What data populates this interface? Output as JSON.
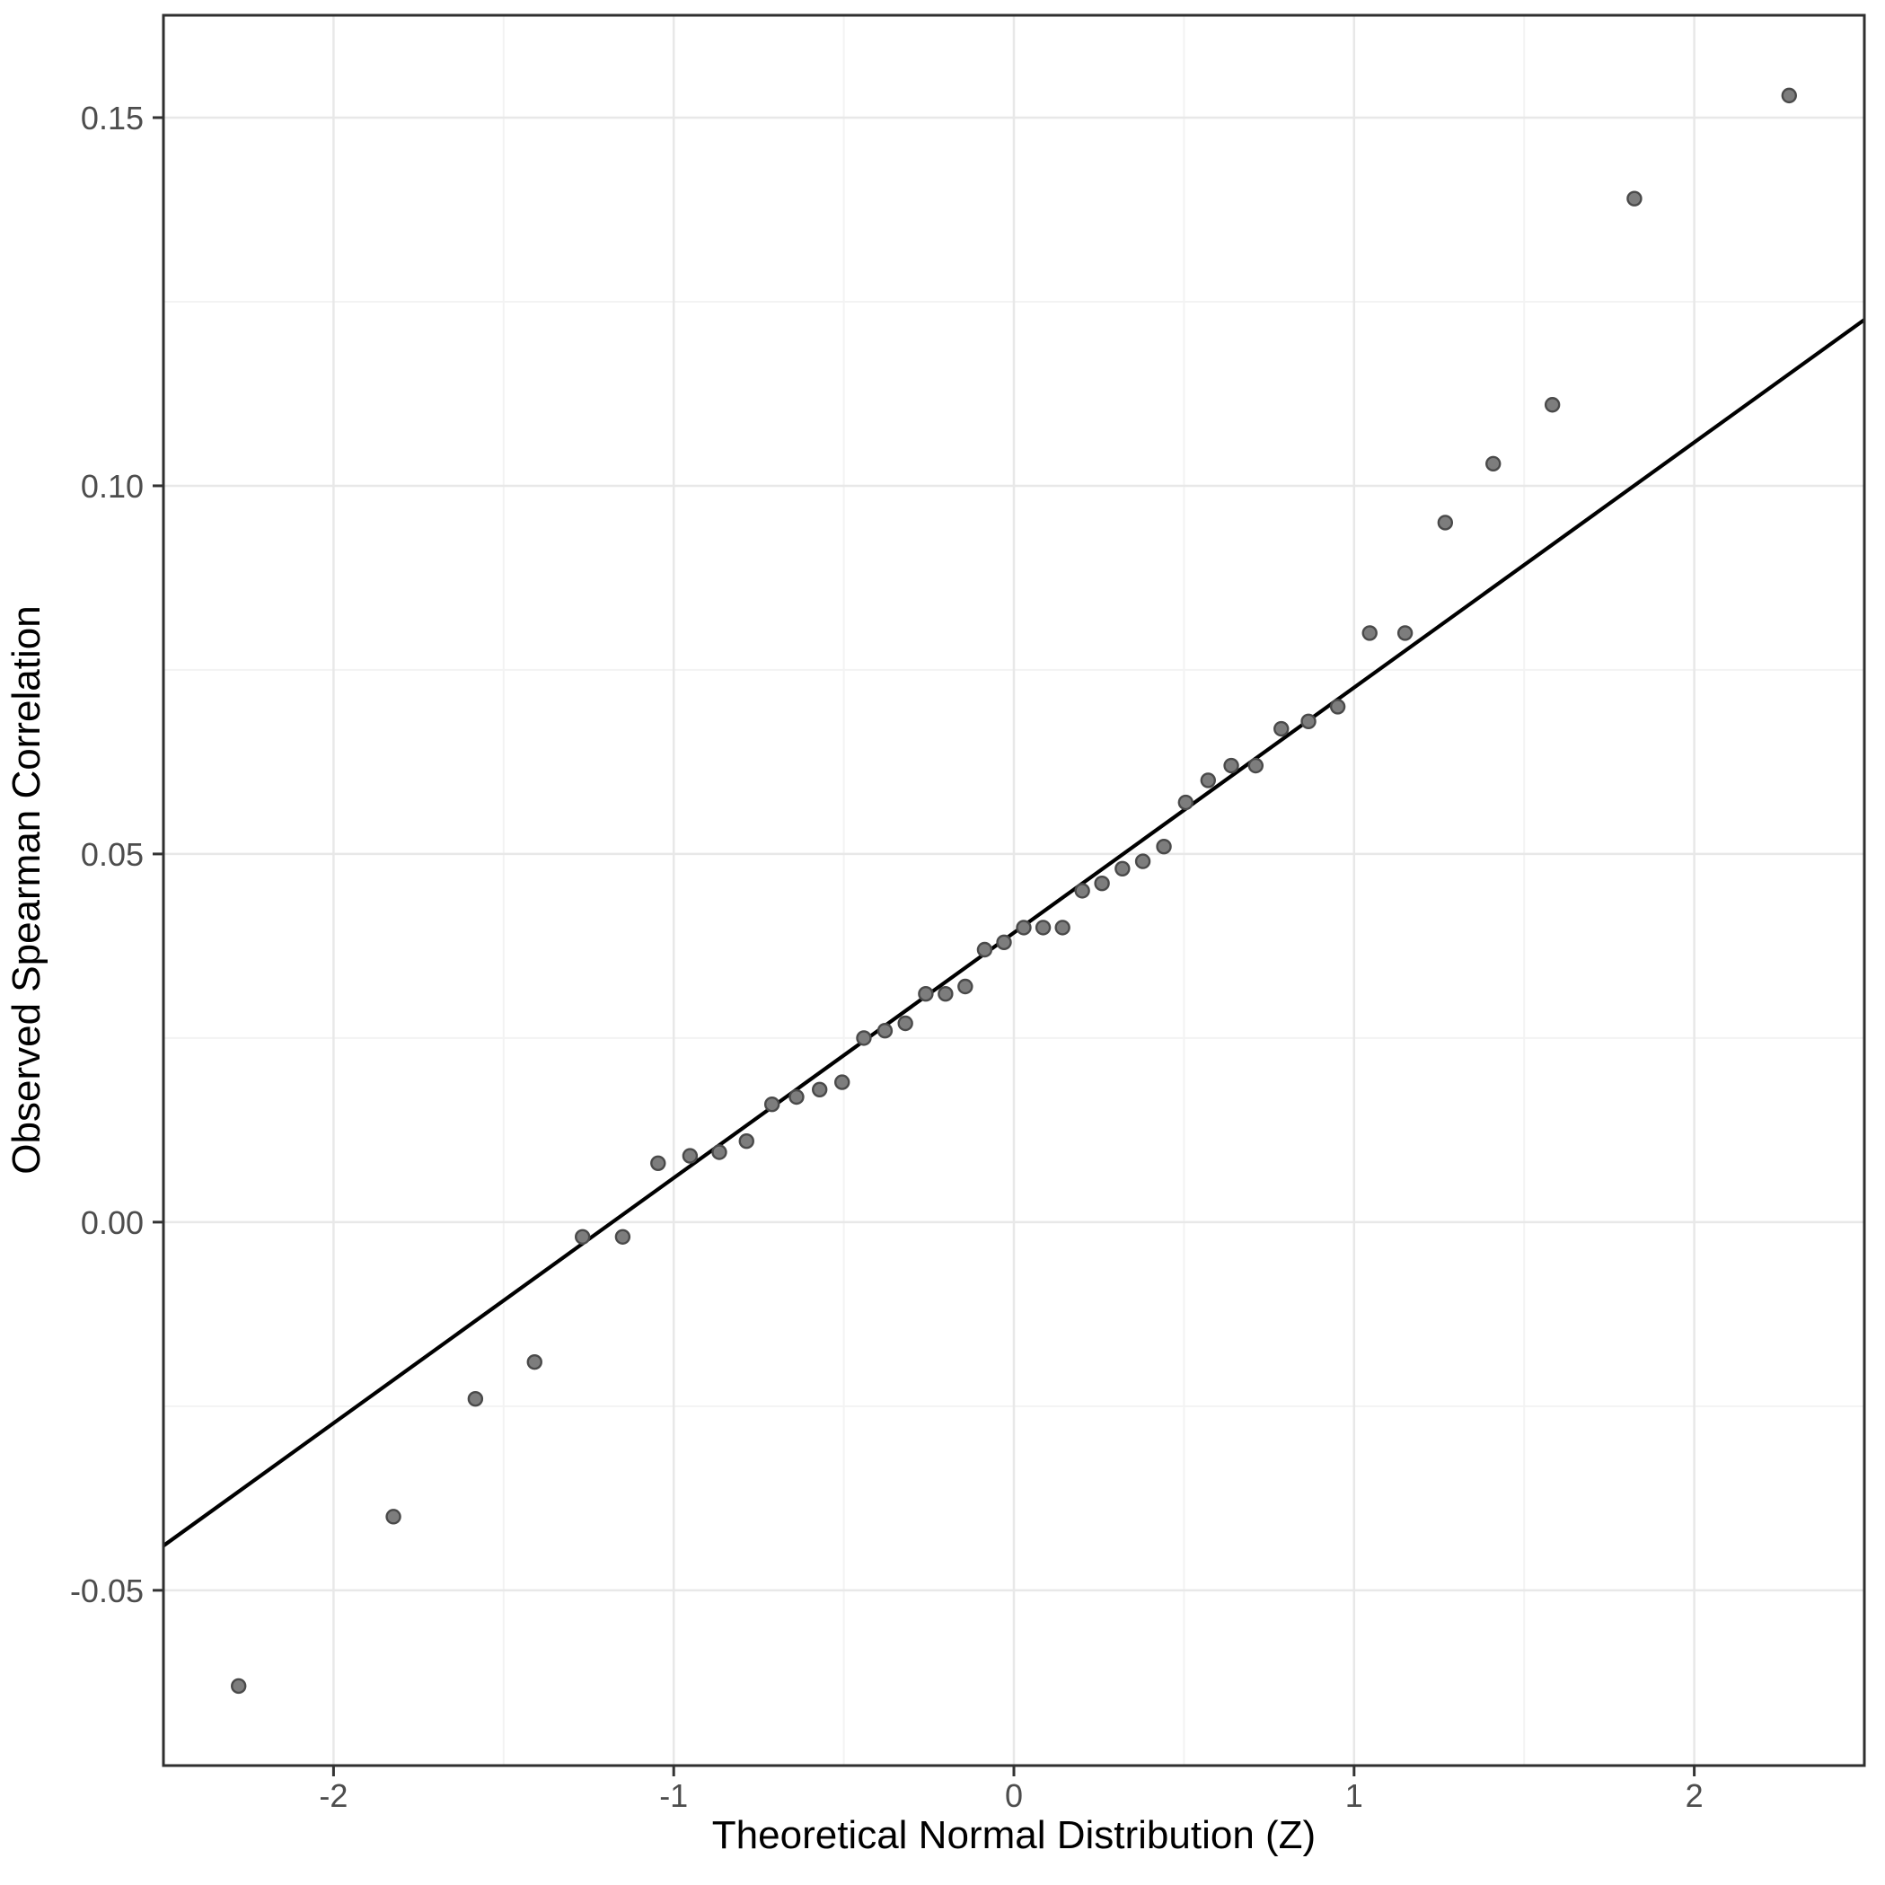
{
  "figure": {
    "background": "#ffffff"
  },
  "chart_data": {
    "type": "scatter",
    "title": "",
    "xlabel": "Theoretical Normal Distribution (Z)",
    "ylabel": "Observed Spearman Correlation",
    "xlim": [
      -2.5,
      2.5
    ],
    "ylim": [
      -0.0738,
      0.1639
    ],
    "grid": "on",
    "x_ticks": [
      -2,
      -1,
      0,
      1,
      2
    ],
    "x_tick_labels": [
      "-2",
      "-1",
      "0",
      "1",
      "2"
    ],
    "x_minor_gridlines": [
      -1.5,
      -0.5,
      0.5,
      1.5
    ],
    "y_ticks": [
      0.15,
      0.1,
      0.05,
      0.0,
      -0.05
    ],
    "y_tick_labels": [
      "0.15",
      "0.10",
      "0.05",
      "0.00",
      "-0.05"
    ],
    "y_minor_gridlines": [
      0.125,
      0.075,
      0.025,
      -0.025
    ],
    "points": {
      "x": [
        -2.279,
        -1.824,
        -1.583,
        -1.409,
        -1.268,
        -1.15,
        -1.046,
        -0.952,
        -0.866,
        -0.786,
        -0.711,
        -0.639,
        -0.571,
        -0.505,
        -0.441,
        -0.379,
        -0.319,
        -0.259,
        -0.201,
        -0.143,
        -0.086,
        -0.029,
        0.029,
        0.086,
        0.143,
        0.201,
        0.259,
        0.319,
        0.379,
        0.441,
        0.505,
        0.571,
        0.639,
        0.711,
        0.786,
        0.866,
        0.952,
        1.046,
        1.15,
        1.268,
        1.409,
        1.583,
        1.824,
        2.279
      ],
      "y": [
        -0.063,
        -0.04,
        -0.024,
        -0.019,
        -0.002,
        -0.002,
        0.008,
        0.009,
        0.0095,
        0.011,
        0.016,
        0.017,
        0.018,
        0.019,
        0.025,
        0.026,
        0.027,
        0.031,
        0.031,
        0.032,
        0.037,
        0.038,
        0.04,
        0.04,
        0.04,
        0.045,
        0.046,
        0.048,
        0.049,
        0.051,
        0.057,
        0.06,
        0.062,
        0.062,
        0.067,
        0.068,
        0.07,
        0.08,
        0.08,
        0.095,
        0.103,
        0.111,
        0.139,
        0.153
      ]
    },
    "reference_line": {
      "intercept": 0.0393,
      "slope": 0.0333
    },
    "legend": "none",
    "colors": {
      "point_fill": "#7d7d7d",
      "point_stroke": "#4a4a4a",
      "reference_line": "#000000",
      "grid_major": "#e8e8e8",
      "grid_minor": "#f3f3f3",
      "panel_border": "#2f2f2f",
      "tick_mark": "#333333",
      "tick_label": "#4d4d4d",
      "axis_title": "#000000",
      "panel_background": "#ffffff"
    }
  }
}
